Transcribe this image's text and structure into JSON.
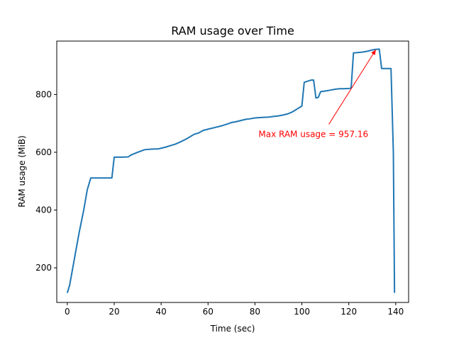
{
  "chart_data": {
    "type": "line",
    "title": "RAM usage over Time",
    "xlabel": "Time (sec)",
    "ylabel": "RAM usage (MiB)",
    "xlim": [
      -4.5,
      145.5
    ],
    "ylim": [
      80,
      985
    ],
    "xticks": [
      0,
      20,
      40,
      60,
      80,
      100,
      120,
      140
    ],
    "yticks": [
      200,
      400,
      600,
      800
    ],
    "grid": false,
    "line_color": "#1f77b4",
    "series": [
      {
        "x": [
          0,
          1,
          3,
          5,
          7,
          8.5,
          10,
          13,
          16,
          19,
          20,
          23,
          26,
          27,
          30,
          33,
          36,
          39,
          40,
          42,
          44,
          46,
          48,
          50,
          52,
          54,
          56,
          58,
          60,
          63,
          66,
          69,
          70,
          72,
          74,
          76,
          78,
          80,
          82,
          84,
          86,
          88,
          90,
          92,
          94,
          96,
          97,
          98,
          99,
          100,
          101,
          102,
          104,
          105,
          106,
          107,
          108,
          110,
          112,
          114,
          116,
          118,
          120,
          121,
          122,
          126,
          128,
          131,
          133,
          134,
          136,
          138,
          139,
          139.5
        ],
        "y": [
          113,
          140,
          230,
          320,
          400,
          470,
          511,
          511,
          511,
          511,
          583,
          583,
          584,
          590,
          600,
          609,
          611,
          612,
          614,
          618,
          623,
          628,
          635,
          643,
          652,
          662,
          667,
          676,
          680,
          686,
          692,
          700,
          703,
          706,
          710,
          714,
          716,
          719,
          720,
          721,
          722,
          724,
          726,
          729,
          733,
          740,
          745,
          750,
          755,
          760,
          842,
          845,
          850,
          850,
          788,
          790,
          810,
          812,
          815,
          818,
          820,
          820,
          821,
          822,
          944,
          947,
          950,
          956,
          957,
          890,
          890,
          890,
          600,
          113
        ]
      }
    ],
    "annotation": {
      "text": "Max RAM usage = 957.16",
      "color": "#ff0000",
      "text_x": 81.5,
      "text_y": 650,
      "arrow_from_x": 111.5,
      "arrow_from_y": 697,
      "arrow_to_x": 131.5,
      "arrow_to_y": 955
    }
  }
}
